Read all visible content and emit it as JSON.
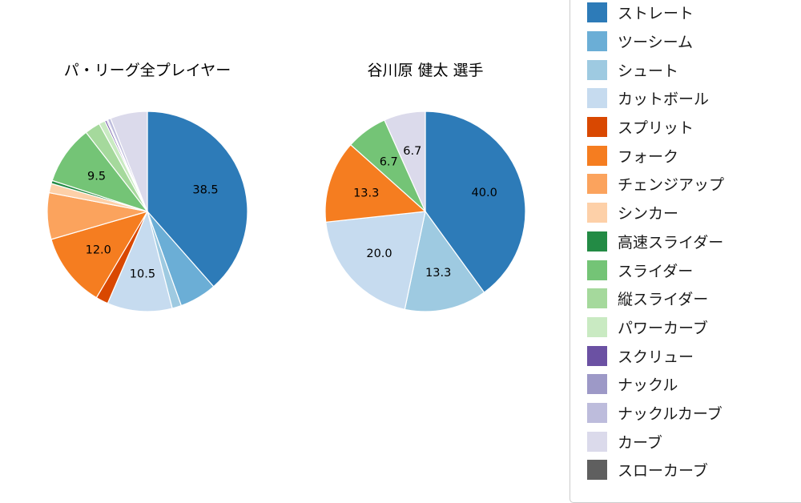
{
  "figure": {
    "background": "#ffffff"
  },
  "chart_data": [
    {
      "type": "pie",
      "title": "パ・リーグ全プレイヤー",
      "start_angle": "12-o'clock",
      "direction": "clockwise",
      "slices": [
        {
          "name": "ストレート",
          "value": 38.5,
          "label": "38.5",
          "color": "#2d7bb8"
        },
        {
          "name": "ツーシーム",
          "value": 6.0,
          "label": "",
          "color": "#6baed6"
        },
        {
          "name": "シュート",
          "value": 1.5,
          "label": "",
          "color": "#9ecae1"
        },
        {
          "name": "カットボール",
          "value": 10.5,
          "label": "10.5",
          "color": "#c6dbef"
        },
        {
          "name": "スプリット",
          "value": 2.0,
          "label": "",
          "color": "#d94801"
        },
        {
          "name": "フォーク",
          "value": 12.0,
          "label": "12.0",
          "color": "#f57d20"
        },
        {
          "name": "チェンジアップ",
          "value": 7.5,
          "label": "",
          "color": "#fba35d"
        },
        {
          "name": "シンカー",
          "value": 1.5,
          "label": "",
          "color": "#fdd0a8"
        },
        {
          "name": "高速スライダー",
          "value": 0.5,
          "label": "",
          "color": "#238b45"
        },
        {
          "name": "スライダー",
          "value": 9.5,
          "label": "9.5",
          "color": "#74c476"
        },
        {
          "name": "縦スライダー",
          "value": 2.5,
          "label": "",
          "color": "#a5d99c"
        },
        {
          "name": "パワーカーブ",
          "value": 1.0,
          "label": "",
          "color": "#c9eac2"
        },
        {
          "name": "スクリュー",
          "value": 0.3,
          "label": "",
          "color": "#6b51a3"
        },
        {
          "name": "ナックル",
          "value": 0.2,
          "label": "",
          "color": "#9d99c7"
        },
        {
          "name": "ナックルカーブ",
          "value": 0.5,
          "label": "",
          "color": "#bdbcdc"
        },
        {
          "name": "カーブ",
          "value": 6.0,
          "label": "",
          "color": "#dbdaeb"
        }
      ]
    },
    {
      "type": "pie",
      "title": "谷川原 健太  選手",
      "start_angle": "12-o'clock",
      "direction": "clockwise",
      "slices": [
        {
          "name": "ストレート",
          "value": 40.0,
          "label": "40.0",
          "color": "#2d7bb8"
        },
        {
          "name": "シュート",
          "value": 13.3,
          "label": "13.3",
          "color": "#9ecae1"
        },
        {
          "name": "カットボール",
          "value": 20.0,
          "label": "20.0",
          "color": "#c6dbef"
        },
        {
          "name": "フォーク",
          "value": 13.3,
          "label": "13.3",
          "color": "#f57d20"
        },
        {
          "name": "スライダー",
          "value": 6.7,
          "label": "6.7",
          "color": "#74c476"
        },
        {
          "name": "カーブ",
          "value": 6.7,
          "label": "6.7",
          "color": "#dbdaeb"
        }
      ]
    }
  ],
  "legend": {
    "items": [
      {
        "label": "ストレート",
        "color": "#2d7bb8"
      },
      {
        "label": "ツーシーム",
        "color": "#6baed6"
      },
      {
        "label": "シュート",
        "color": "#9ecae1"
      },
      {
        "label": "カットボール",
        "color": "#c6dbef"
      },
      {
        "label": "スプリット",
        "color": "#d94801"
      },
      {
        "label": "フォーク",
        "color": "#f57d20"
      },
      {
        "label": "チェンジアップ",
        "color": "#fba35d"
      },
      {
        "label": "シンカー",
        "color": "#fdd0a8"
      },
      {
        "label": "高速スライダー",
        "color": "#238b45"
      },
      {
        "label": "スライダー",
        "color": "#74c476"
      },
      {
        "label": "縦スライダー",
        "color": "#a5d99c"
      },
      {
        "label": "パワーカーブ",
        "color": "#c9eac2"
      },
      {
        "label": "スクリュー",
        "color": "#6b51a3"
      },
      {
        "label": "ナックル",
        "color": "#9d99c7"
      },
      {
        "label": "ナックルカーブ",
        "color": "#bdbcdc"
      },
      {
        "label": "カーブ",
        "color": "#dbdaeb"
      },
      {
        "label": "スローカーブ",
        "color": "#5f5f5f"
      }
    ]
  }
}
